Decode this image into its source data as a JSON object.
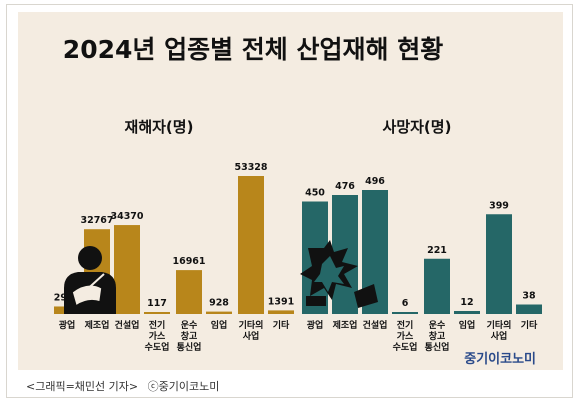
{
  "chart_data": [
    {
      "type": "bar",
      "title": "2024년 업종별 전체 산업재해 현황",
      "subtitle": "재해자(명)",
      "color": "#b8861b",
      "categories": [
        "광업",
        "제조업",
        "건설업",
        "전기 가스 수도업",
        "운수 창고 통신업",
        "임업",
        "기타의 사업",
        "기타"
      ],
      "values": [
        2909,
        32767,
        34370,
        117,
        16961,
        928,
        53328,
        1391
      ]
    },
    {
      "type": "bar",
      "subtitle": "사망자(명)",
      "color": "#256767",
      "categories": [
        "광업",
        "제조업",
        "건설업",
        "전기 가스 수도업",
        "운수 창고 통신업",
        "임업",
        "기타의 사업",
        "기타"
      ],
      "values": [
        450,
        476,
        496,
        6,
        221,
        12,
        399,
        38
      ]
    }
  ],
  "brand": "중기이코노미",
  "brand_color": "#2a4a8a",
  "caption": {
    "credit": "<그래픽=채민선 기자>",
    "copyright": "ⓒ중기이코노미"
  },
  "icons": [
    "injured-worker-icon",
    "accident-burst-icon"
  ]
}
